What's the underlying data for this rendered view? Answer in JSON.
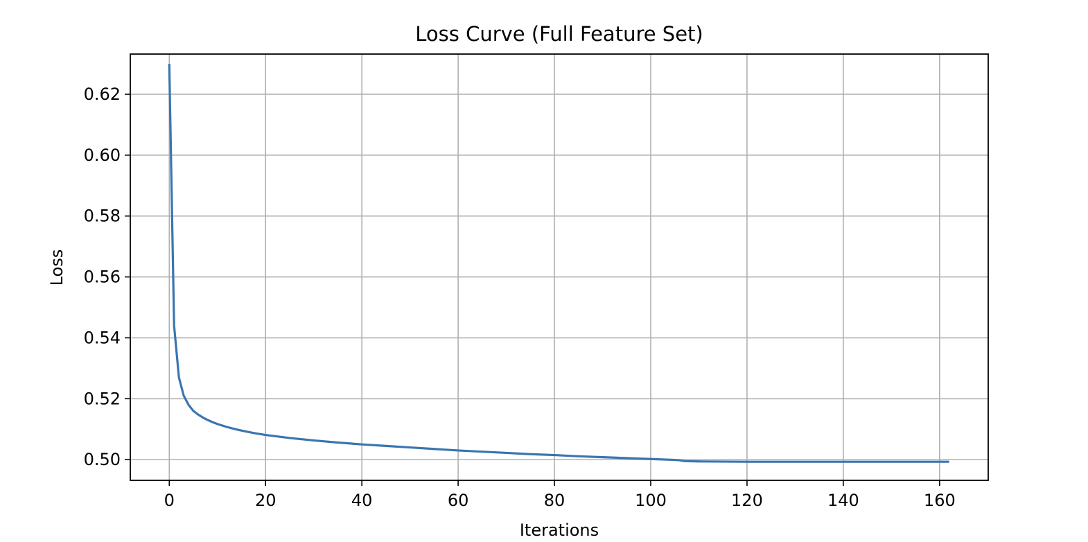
{
  "chart_data": {
    "type": "line",
    "title": "Loss Curve (Full Feature Set)",
    "xlabel": "Iterations",
    "ylabel": "Loss",
    "xlim": [
      -8.1,
      170.1
    ],
    "ylim": [
      0.4932,
      0.6332
    ],
    "xticks": [
      0,
      20,
      40,
      60,
      80,
      100,
      120,
      140,
      160
    ],
    "yticks": [
      0.5,
      0.52,
      0.54,
      0.56,
      0.58,
      0.6,
      0.62
    ],
    "ytick_labels": [
      "0.50",
      "0.52",
      "0.54",
      "0.56",
      "0.58",
      "0.60",
      "0.62"
    ],
    "grid": true,
    "colors": {
      "series": "#3a75b0",
      "grid": "#b0b0b0",
      "frame": "#000000"
    },
    "series": [
      {
        "x": [
          0,
          1,
          2,
          3,
          4,
          5,
          6,
          7,
          8,
          9,
          10,
          12,
          14,
          16,
          18,
          20,
          25,
          30,
          35,
          40,
          45,
          50,
          55,
          60,
          65,
          70,
          75,
          80,
          85,
          90,
          95,
          100,
          105,
          106,
          107,
          110,
          120,
          130,
          140,
          150,
          162
        ],
        "y": [
          0.63,
          0.544,
          0.527,
          0.521,
          0.518,
          0.516,
          0.5148,
          0.5138,
          0.513,
          0.5123,
          0.5117,
          0.5107,
          0.5099,
          0.5092,
          0.5086,
          0.5081,
          0.5071,
          0.5063,
          0.5056,
          0.505,
          0.5045,
          0.504,
          0.5035,
          0.503,
          0.5026,
          0.5022,
          0.5018,
          0.5015,
          0.5011,
          0.5008,
          0.5005,
          0.5002,
          0.4999,
          0.4998,
          0.4995,
          0.4994,
          0.4993,
          0.4993,
          0.4993,
          0.4993,
          0.4993
        ]
      }
    ]
  }
}
